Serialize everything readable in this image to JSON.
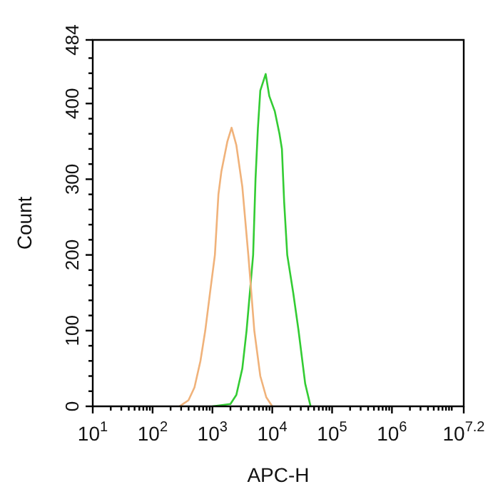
{
  "chart_data": {
    "type": "line",
    "xlabel": "APC-H",
    "ylabel": "Count",
    "log": "x",
    "grid": false,
    "legend": false,
    "marker": "none",
    "line_style": "solid",
    "xlim": [
      10,
      15848932
    ],
    "xticks": [
      {
        "value": 10,
        "label": "10$^{1}$"
      },
      {
        "value": 20,
        "label": null
      },
      {
        "value": 30,
        "label": null
      },
      {
        "value": 40,
        "label": null
      },
      {
        "value": 50,
        "label": null
      },
      {
        "value": 60,
        "label": null
      },
      {
        "value": 70,
        "label": null
      },
      {
        "value": 80,
        "label": null
      },
      {
        "value": 90,
        "label": null
      },
      {
        "value": 100,
        "label": "10$^{2}$"
      },
      {
        "value": 200,
        "label": null
      },
      {
        "value": 300,
        "label": null
      },
      {
        "value": 400,
        "label": null
      },
      {
        "value": 500,
        "label": null
      },
      {
        "value": 600,
        "label": null
      },
      {
        "value": 700,
        "label": null
      },
      {
        "value": 800,
        "label": null
      },
      {
        "value": 900,
        "label": null
      },
      {
        "value": 1000,
        "label": "10$^{3}$"
      },
      {
        "value": 2000,
        "label": null
      },
      {
        "value": 3000,
        "label": null
      },
      {
        "value": 4000,
        "label": null
      },
      {
        "value": 5000,
        "label": null
      },
      {
        "value": 6000,
        "label": null
      },
      {
        "value": 7000,
        "label": null
      },
      {
        "value": 8000,
        "label": null
      },
      {
        "value": 9000,
        "label": null
      },
      {
        "value": 10000,
        "label": "10$^{4}$"
      },
      {
        "value": 20000,
        "label": null
      },
      {
        "value": 30000,
        "label": null
      },
      {
        "value": 40000,
        "label": null
      },
      {
        "value": 50000,
        "label": null
      },
      {
        "value": 60000,
        "label": null
      },
      {
        "value": 70000,
        "label": null
      },
      {
        "value": 80000,
        "label": null
      },
      {
        "value": 90000,
        "label": null
      },
      {
        "value": 100000,
        "label": "10$^{5}$"
      },
      {
        "value": 200000,
        "label": null
      },
      {
        "value": 300000,
        "label": null
      },
      {
        "value": 400000,
        "label": null
      },
      {
        "value": 500000,
        "label": null
      },
      {
        "value": 600000,
        "label": null
      },
      {
        "value": 700000,
        "label": null
      },
      {
        "value": 800000,
        "label": null
      },
      {
        "value": 900000,
        "label": null
      },
      {
        "value": 1000000,
        "label": "10$^{6}$"
      },
      {
        "value": 2000000,
        "label": null
      },
      {
        "value": 3000000,
        "label": null
      },
      {
        "value": 4000000,
        "label": null
      },
      {
        "value": 5000000,
        "label": null
      },
      {
        "value": 6000000,
        "label": null
      },
      {
        "value": 7000000,
        "label": null
      },
      {
        "value": 8000000,
        "label": null
      },
      {
        "value": 9000000,
        "label": null
      },
      {
        "value": 10000000,
        "label": null
      },
      {
        "value": 15848932,
        "label": "10$^{7.2}$"
      }
    ],
    "ylim": [
      0,
      484
    ],
    "yticks": [
      0,
      {
        "value": 20,
        "label": null
      },
      {
        "value": 40,
        "label": null
      },
      {
        "value": 60,
        "label": null
      },
      {
        "value": 80,
        "label": null
      },
      100,
      {
        "value": 120,
        "label": null
      },
      {
        "value": 140,
        "label": null
      },
      {
        "value": 160,
        "label": null
      },
      {
        "value": 180,
        "label": null
      },
      200,
      {
        "value": 220,
        "label": null
      },
      {
        "value": 240,
        "label": null
      },
      {
        "value": 260,
        "label": null
      },
      {
        "value": 280,
        "label": null
      },
      300,
      {
        "value": 320,
        "label": null
      },
      {
        "value": 340,
        "label": null
      },
      {
        "value": 360,
        "label": null
      },
      {
        "value": 380,
        "label": null
      },
      400,
      {
        "value": 420,
        "label": null
      },
      {
        "value": 440,
        "label": null
      },
      {
        "value": 460,
        "label": null
      },
      484
    ],
    "series": [
      {
        "color": "#f0b27a",
        "x": [
          282,
          398,
          501,
          631,
          759,
          912,
          1100,
          1260,
          1410,
          1780,
          2090,
          2510,
          3160,
          3980,
          4470,
          5010,
          6310,
          7940,
          10000
        ],
        "values": [
          0,
          8,
          25,
          60,
          100,
          150,
          200,
          280,
          310,
          350,
          368,
          345,
          290,
          200,
          150,
          100,
          40,
          12,
          0
        ]
      },
      {
        "color": "#33cc33",
        "x": [
          1000,
          2000,
          2510,
          3160,
          3720,
          4790,
          5250,
          5750,
          6310,
          7760,
          8910,
          11000,
          13200,
          14500,
          15800,
          17800,
          22400,
          27500,
          35500,
          43700
        ],
        "values": [
          0,
          3,
          15,
          50,
          100,
          200,
          300,
          367,
          417,
          439,
          410,
          390,
          360,
          340,
          270,
          200,
          150,
          100,
          30,
          0
        ]
      }
    ]
  }
}
